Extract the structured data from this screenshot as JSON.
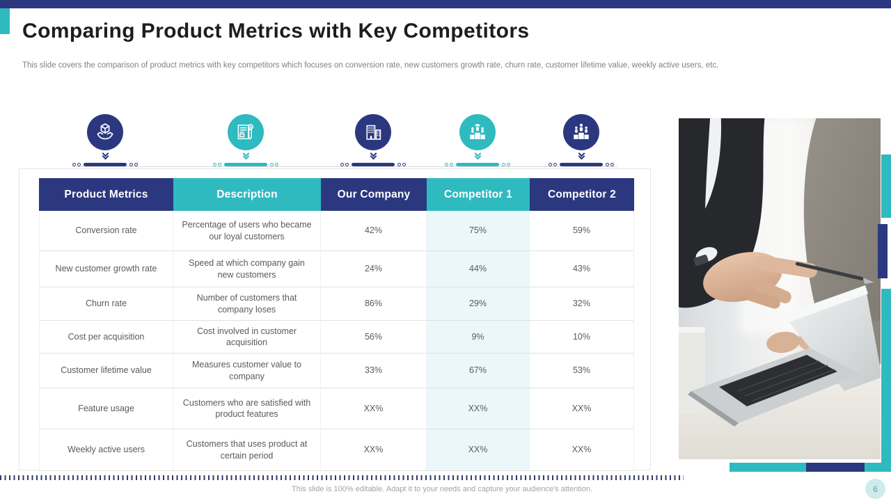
{
  "slide": {
    "title": "Comparing Product Metrics with Key Competitors",
    "subtitle": "This slide covers the comparison of product metrics with key competitors which focuses on conversion rate, new customers growth rate, churn rate, customer lifetime value, weekly active users, etc.",
    "footer_note": "This slide is 100% editable. Adapt it to your needs and capture your audience's attention.",
    "page_number": "6"
  },
  "icons": [
    {
      "name": "product-metrics-icon",
      "glyph": "hands-holding-cube",
      "color": "navy"
    },
    {
      "name": "description-icon",
      "glyph": "document-pencil",
      "color": "teal"
    },
    {
      "name": "our-company-icon",
      "glyph": "office-buildings",
      "color": "navy"
    },
    {
      "name": "competitor-1-icon",
      "glyph": "winners-podium",
      "color": "teal"
    },
    {
      "name": "competitor-2-icon",
      "glyph": "team-podium",
      "color": "navy"
    }
  ],
  "table": {
    "columns": [
      {
        "label": "Product Metrics",
        "color": "navy"
      },
      {
        "label": "Description",
        "color": "teal"
      },
      {
        "label": "Our Company",
        "color": "navy"
      },
      {
        "label": "Competitor 1",
        "color": "teal"
      },
      {
        "label": "Competitor 2",
        "color": "navy"
      }
    ],
    "rows": [
      {
        "metric": "Conversion rate",
        "description": "Percentage of users who became our loyal customers",
        "our_company": "42%",
        "competitor_1": "75%",
        "competitor_2": "59%"
      },
      {
        "metric": "New customer growth rate",
        "description": "Speed at which company gain new customers",
        "our_company": "24%",
        "competitor_1": "44%",
        "competitor_2": "43%"
      },
      {
        "metric": "Churn rate",
        "description": "Number of customers that company loses",
        "our_company": "86%",
        "competitor_1": "29%",
        "competitor_2": "32%"
      },
      {
        "metric": "Cost per acquisition",
        "description": "Cost involved in customer acquisition",
        "our_company": "56%",
        "competitor_1": "9%",
        "competitor_2": "10%"
      },
      {
        "metric": "Customer lifetime value",
        "description": "Measures customer value to company",
        "our_company": "33%",
        "competitor_1": "67%",
        "competitor_2": "53%"
      },
      {
        "metric": "Feature usage",
        "description": "Customers who are satisfied with product features",
        "our_company": "XX%",
        "competitor_1": "XX%",
        "competitor_2": "XX%"
      },
      {
        "metric": "Weekly active users",
        "description": "Customers that uses product at certain period",
        "our_company": "XX%",
        "competitor_1": "XX%",
        "competitor_2": "XX%"
      }
    ]
  },
  "colors": {
    "navy": "#2B3880",
    "teal": "#2FBAC0",
    "competitor1_tint": "#EAF8FA",
    "title_text": "#1D1D1D",
    "body_text": "#5A5A5A",
    "muted_text": "#A3A3A3"
  }
}
